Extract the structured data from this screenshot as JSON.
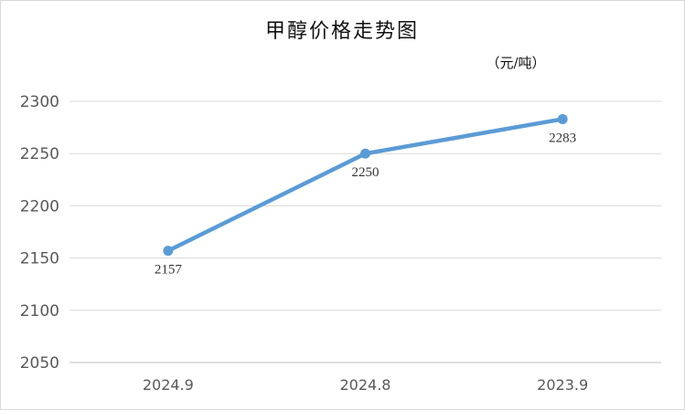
{
  "chart_data": {
    "type": "line",
    "title": "甲醇价格走势图",
    "unit_label": "（元/吨）",
    "categories": [
      "2024.9",
      "2024.8",
      "2023.9"
    ],
    "series": [
      {
        "values": [
          2157,
          2250,
          2283
        ],
        "data_labels": [
          "2157",
          "2250",
          "2283"
        ]
      }
    ],
    "ylim": [
      2050,
      2300
    ],
    "yticks": [
      2050,
      2100,
      2150,
      2200,
      2250,
      2300
    ],
    "grid": true,
    "legend": "none",
    "color": "#5b9bd5"
  }
}
